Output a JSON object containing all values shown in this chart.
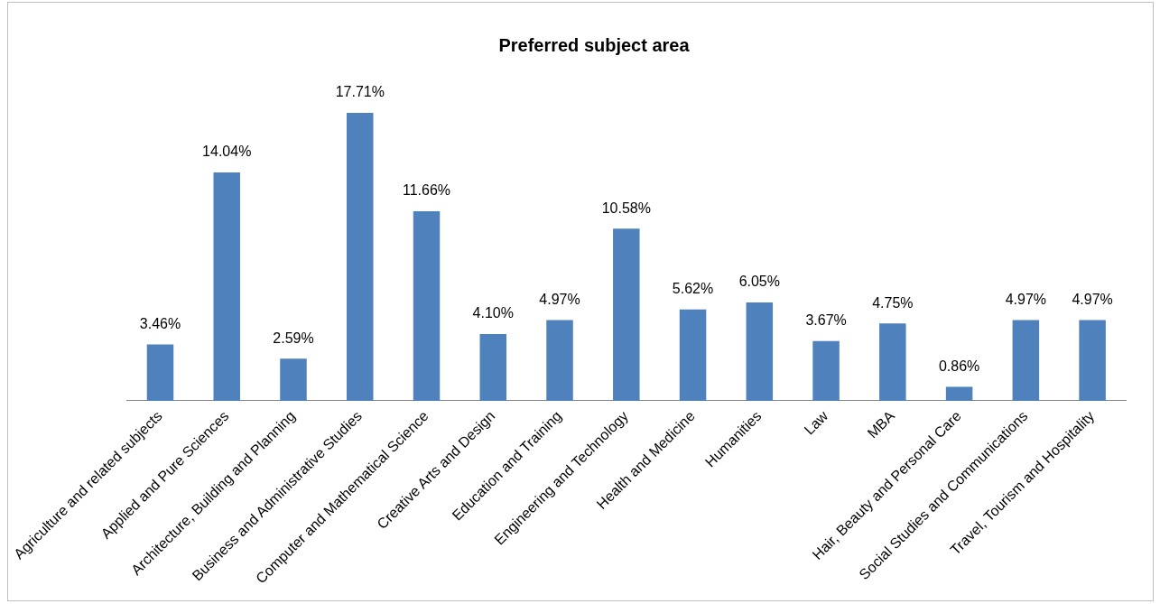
{
  "chart_data": {
    "type": "bar",
    "title": "Preferred subject area",
    "categories": [
      "Agriculture and related subjects",
      "Applied and Pure Sciences",
      "Architecture, Building and Planning",
      "Business and Administrative Studies",
      "Computer and Mathematical Science",
      "Creative Arts and Design",
      "Education and Training",
      "Engineering and Technology",
      "Health and Medicine",
      "Humanities",
      "Law",
      "MBA",
      "Hair, Beauty and Personal Care",
      "Social Studies and Communications",
      "Travel, Tourism and Hospitality"
    ],
    "values": [
      3.46,
      14.04,
      2.59,
      17.71,
      11.66,
      4.1,
      4.97,
      10.58,
      5.62,
      6.05,
      3.67,
      4.75,
      0.86,
      4.97,
      4.97
    ],
    "value_labels": [
      "3.46%",
      "14.04%",
      "2.59%",
      "17.71%",
      "11.66%",
      "4.10%",
      "4.97%",
      "10.58%",
      "5.62%",
      "6.05%",
      "3.67%",
      "4.75%",
      "0.86%",
      "4.97%",
      "4.97%"
    ],
    "color": "#4f81bd",
    "grid": false,
    "legend": false
  }
}
